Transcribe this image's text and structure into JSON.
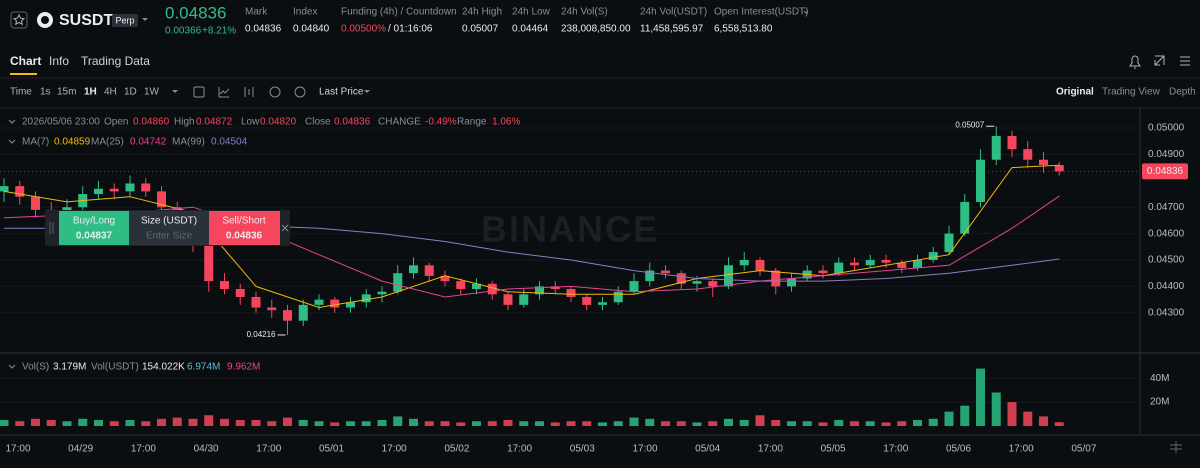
{
  "header": {
    "symbol": "SUSDT",
    "badge": "Perp",
    "price": "0.04836",
    "change": "0.00366",
    "change_pct": "+8.21%",
    "stats": [
      {
        "label": "Mark",
        "value": "0.04836"
      },
      {
        "label": "Index",
        "value": "0.04840"
      },
      {
        "label": "Funding (4h) / Countdown",
        "value": "0.00500%",
        "extra": "/ 01:16:06"
      },
      {
        "label": "24h High",
        "value": "0.05007"
      },
      {
        "label": "24h Low",
        "value": "0.04464"
      },
      {
        "label": "24h Vol(S)",
        "value": "238,008,850.00"
      },
      {
        "label": "24h Vol(USDT)",
        "value": "11,458,595.97"
      },
      {
        "label": "Open Interest(USDT)",
        "value": "6,558,513.80"
      }
    ]
  },
  "tabs": [
    "Chart",
    "Info",
    "Trading Data"
  ],
  "toolbar": {
    "intervals": [
      "Time",
      "1s",
      "15m",
      "1H",
      "4H",
      "1D",
      "1W"
    ],
    "price_type": "Last Price",
    "views": [
      "Original",
      "Trading View",
      "Depth"
    ]
  },
  "ohlc_legend": {
    "time": "2026/05/06 23:00",
    "items": [
      {
        "label": "Open",
        "value": "0.04860"
      },
      {
        "label": "High",
        "value": "0.04872"
      },
      {
        "label": "Low",
        "value": "0.04820"
      },
      {
        "label": "Close",
        "value": "0.04836"
      },
      {
        "label": "CHANGE",
        "value": "-0.49%"
      },
      {
        "label": "Range",
        "value": "1.06%"
      }
    ]
  },
  "vol_legend": {
    "items": [
      {
        "label": "Vol(S)",
        "value": "3.179M",
        "color": "#eaecef"
      },
      {
        "label": "Vol(USDT)",
        "value": "154.022K",
        "color": "#eaecef"
      },
      {
        "value": "6.974M",
        "color": "#5fb8e0"
      },
      {
        "value": "9.962M",
        "color": "#e84393"
      }
    ]
  },
  "order_widget": {
    "buy": {
      "label": "Buy/Long",
      "price": "0.04837"
    },
    "size": {
      "label": "Size (USDT)",
      "placeholder": "Enter Size"
    },
    "sell": {
      "label": "Sell/Short",
      "price": "0.04836"
    }
  },
  "watermark": "BINANCE",
  "chart": {
    "type": "candlestick",
    "up_color": "#2ebd85",
    "down_color": "#f6465d",
    "ylim": [
      0.04159,
      0.05076
    ],
    "yticks": [
      {
        "value": 0.05,
        "label": "0.05000"
      },
      {
        "value": 0.049,
        "label": "0.04900"
      },
      {
        "value": 0.047,
        "label": "0.04700"
      },
      {
        "value": 0.046,
        "label": "0.04600"
      },
      {
        "value": 0.045,
        "label": "0.04500"
      },
      {
        "value": 0.044,
        "label": "0.04400"
      },
      {
        "value": 0.043,
        "label": "0.04300"
      }
    ],
    "last_price": {
      "value": 0.04836,
      "label": "0.04836"
    },
    "max_label": "0.05007",
    "min_label": "0.04216",
    "x_labels": [
      "17:00",
      "04/29",
      "17:00",
      "04/30",
      "17:00",
      "05/01",
      "17:00",
      "05/02",
      "17:00",
      "05/03",
      "17:00",
      "05/04",
      "17:00",
      "05/05",
      "17:00",
      "05/06",
      "17:00",
      "05/07"
    ],
    "candles": [
      [
        0.0476,
        0.0481,
        0.0472,
        0.0478
      ],
      [
        0.0478,
        0.048,
        0.0471,
        0.0474
      ],
      [
        0.0474,
        0.0476,
        0.0466,
        0.0469
      ],
      [
        0.0469,
        0.0472,
        0.0463,
        0.0466
      ],
      [
        0.0466,
        0.0473,
        0.0464,
        0.047
      ],
      [
        0.047,
        0.0478,
        0.0468,
        0.0475
      ],
      [
        0.0475,
        0.048,
        0.0473,
        0.0477
      ],
      [
        0.0477,
        0.0479,
        0.0473,
        0.0476
      ],
      [
        0.0476,
        0.0482,
        0.0474,
        0.0479
      ],
      [
        0.0479,
        0.0481,
        0.0474,
        0.0476
      ],
      [
        0.0476,
        0.0478,
        0.0468,
        0.047
      ],
      [
        0.047,
        0.0472,
        0.0459,
        0.0462
      ],
      [
        0.0462,
        0.0464,
        0.0453,
        0.0456
      ],
      [
        0.0456,
        0.0458,
        0.0438,
        0.0442
      ],
      [
        0.0442,
        0.0445,
        0.0437,
        0.0439
      ],
      [
        0.0439,
        0.0441,
        0.0433,
        0.0436
      ],
      [
        0.0436,
        0.0438,
        0.043,
        0.0432
      ],
      [
        0.0432,
        0.0435,
        0.0428,
        0.0431
      ],
      [
        0.0431,
        0.0433,
        0.04216,
        0.0427
      ],
      [
        0.0427,
        0.0435,
        0.0425,
        0.0433
      ],
      [
        0.0433,
        0.0437,
        0.0431,
        0.0435
      ],
      [
        0.0435,
        0.0436,
        0.043,
        0.0432
      ],
      [
        0.0432,
        0.0436,
        0.043,
        0.0434
      ],
      [
        0.0434,
        0.0439,
        0.0432,
        0.0437
      ],
      [
        0.0437,
        0.044,
        0.0434,
        0.0438
      ],
      [
        0.0438,
        0.0448,
        0.0437,
        0.0445
      ],
      [
        0.0445,
        0.0451,
        0.0443,
        0.0448
      ],
      [
        0.0448,
        0.0449,
        0.0442,
        0.0444
      ],
      [
        0.0444,
        0.0446,
        0.044,
        0.0442
      ],
      [
        0.0442,
        0.0443,
        0.0437,
        0.0439
      ],
      [
        0.0439,
        0.0443,
        0.0437,
        0.0441
      ],
      [
        0.0441,
        0.0442,
        0.0435,
        0.0437
      ],
      [
        0.0437,
        0.0438,
        0.0431,
        0.0433
      ],
      [
        0.0433,
        0.0439,
        0.0432,
        0.0437
      ],
      [
        0.0437,
        0.0442,
        0.0435,
        0.044
      ],
      [
        0.044,
        0.0442,
        0.0437,
        0.0439
      ],
      [
        0.0439,
        0.044,
        0.0434,
        0.0436
      ],
      [
        0.0436,
        0.0437,
        0.0431,
        0.0433
      ],
      [
        0.0433,
        0.0436,
        0.0431,
        0.0434
      ],
      [
        0.0434,
        0.044,
        0.0433,
        0.0438
      ],
      [
        0.0438,
        0.0445,
        0.0437,
        0.0442
      ],
      [
        0.0442,
        0.0449,
        0.044,
        0.0446
      ],
      [
        0.0446,
        0.0448,
        0.0443,
        0.0445
      ],
      [
        0.0445,
        0.0446,
        0.0439,
        0.0441
      ],
      [
        0.0441,
        0.0444,
        0.0438,
        0.0442
      ],
      [
        0.0442,
        0.0443,
        0.0436,
        0.044
      ],
      [
        0.044,
        0.0451,
        0.0439,
        0.0448
      ],
      [
        0.0448,
        0.0453,
        0.0446,
        0.045
      ],
      [
        0.045,
        0.0451,
        0.0444,
        0.0446
      ],
      [
        0.0446,
        0.0447,
        0.0437,
        0.044
      ],
      [
        0.044,
        0.0445,
        0.0438,
        0.0443
      ],
      [
        0.0443,
        0.0448,
        0.0442,
        0.0446
      ],
      [
        0.0446,
        0.0448,
        0.0443,
        0.0445
      ],
      [
        0.0445,
        0.0451,
        0.0444,
        0.0449
      ],
      [
        0.0449,
        0.0451,
        0.0446,
        0.0448
      ],
      [
        0.0448,
        0.0452,
        0.0447,
        0.045
      ],
      [
        0.045,
        0.0452,
        0.0447,
        0.0449
      ],
      [
        0.0449,
        0.045,
        0.0445,
        0.0447
      ],
      [
        0.0447,
        0.0452,
        0.0446,
        0.045
      ],
      [
        0.045,
        0.0455,
        0.0449,
        0.0453
      ],
      [
        0.0453,
        0.0463,
        0.0452,
        0.046
      ],
      [
        0.046,
        0.0475,
        0.0459,
        0.0472
      ],
      [
        0.0472,
        0.0492,
        0.047,
        0.0488
      ],
      [
        0.0488,
        0.05007,
        0.0486,
        0.0497
      ],
      [
        0.0497,
        0.0499,
        0.0489,
        0.0492
      ],
      [
        0.0492,
        0.0495,
        0.0485,
        0.0488
      ],
      [
        0.0488,
        0.0491,
        0.0483,
        0.0486
      ],
      [
        0.0486,
        0.04872,
        0.0482,
        0.04836
      ]
    ],
    "ma": [
      {
        "label": "MA(7)",
        "value": "0.04859",
        "color": "#f0b90b",
        "values": [
          0.0476,
          0.0472,
          0.0474,
          0.0468,
          0.044,
          0.0432,
          0.0436,
          0.0444,
          0.0438,
          0.0437,
          0.0437,
          0.0443,
          0.0446,
          0.0444,
          0.0448,
          0.0452,
          0.0485,
          0.04859
        ]
      },
      {
        "label": "MA(25)",
        "value": "0.04742",
        "color": "#e84393",
        "values": [
          0.0466,
          0.0467,
          0.0468,
          0.047,
          0.0462,
          0.0452,
          0.0442,
          0.0436,
          0.0439,
          0.044,
          0.0438,
          0.0439,
          0.0442,
          0.0444,
          0.0446,
          0.0448,
          0.0462,
          0.04742
        ]
      },
      {
        "label": "MA(99)",
        "value": "0.04504",
        "color": "#8e7cc3",
        "values": [
          0.0462,
          0.0462,
          0.0463,
          0.0463,
          0.0463,
          0.0462,
          0.046,
          0.0457,
          0.0453,
          0.045,
          0.0446,
          0.0443,
          0.0442,
          0.0442,
          0.0443,
          0.0445,
          0.0448,
          0.04504
        ]
      }
    ],
    "volume": {
      "ylim": [
        0,
        56000000
      ],
      "yticks": [
        {
          "value": 20000000,
          "label": "20M"
        },
        {
          "value": 40000000,
          "label": "40M"
        }
      ],
      "values": [
        5000000,
        4000000,
        6000000,
        5000000,
        4000000,
        6000000,
        5000000,
        4000000,
        5000000,
        4000000,
        6000000,
        7000000,
        6000000,
        9000000,
        6000000,
        5000000,
        5000000,
        4000000,
        7000000,
        5000000,
        4000000,
        3000000,
        4000000,
        4000000,
        5000000,
        8000000,
        6000000,
        4000000,
        4000000,
        3000000,
        4000000,
        4000000,
        5000000,
        4000000,
        4000000,
        3000000,
        4000000,
        4000000,
        3000000,
        4000000,
        7000000,
        6000000,
        4000000,
        4000000,
        3000000,
        4000000,
        6000000,
        5000000,
        9000000,
        5000000,
        4000000,
        4000000,
        3000000,
        5000000,
        4000000,
        4000000,
        3000000,
        4000000,
        5000000,
        6000000,
        12000000,
        17000000,
        48000000,
        28000000,
        20000000,
        12000000,
        8000000,
        3179000
      ]
    }
  }
}
